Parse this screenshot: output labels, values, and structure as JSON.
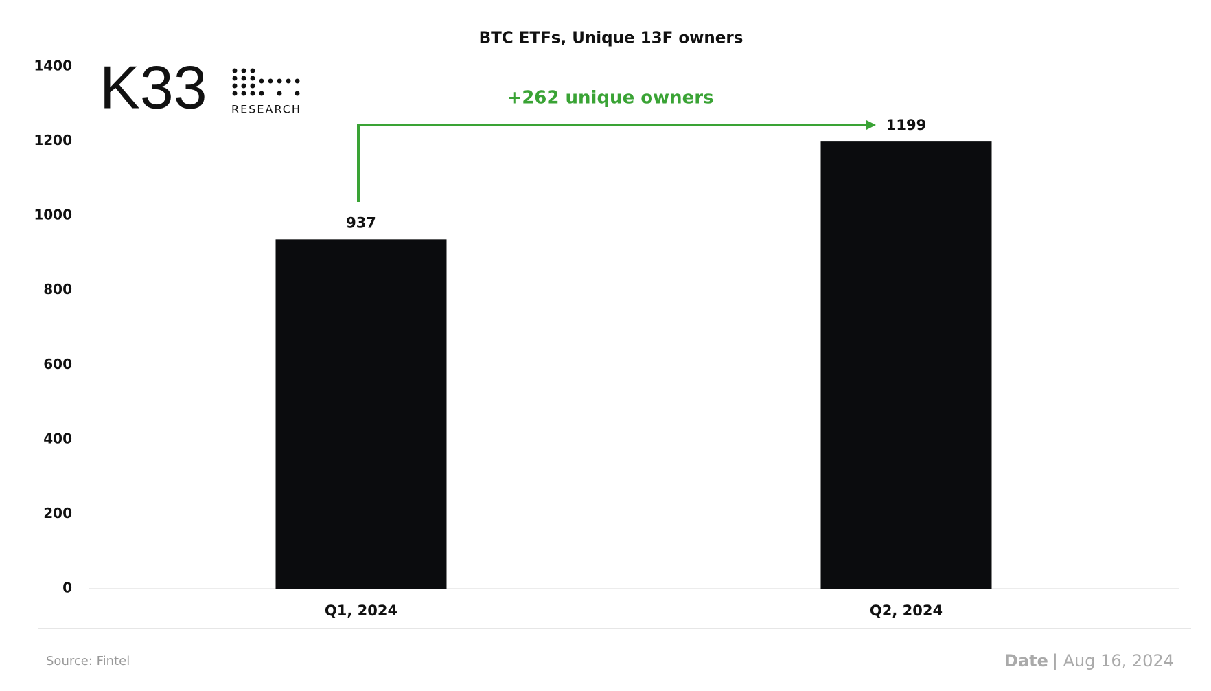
{
  "chart_data": {
    "type": "bar",
    "title": "BTC ETFs, Unique 13F owners",
    "categories": [
      "Q1, 2024",
      "Q2, 2024"
    ],
    "values": [
      937,
      1199
    ],
    "color": "#0b0c0e",
    "ylim": [
      0,
      1400
    ],
    "yticks": [
      0,
      200,
      400,
      600,
      800,
      1000,
      1200,
      1400
    ],
    "grid": false,
    "annotation": "+262 unique owners",
    "annotation_color": "#3aa335"
  },
  "logo": {
    "name": "K33",
    "subtitle": "RESEARCH"
  },
  "footer": {
    "source": "Source:  Fintel",
    "date_label": "Date",
    "date": "| Aug 16, 2024"
  }
}
